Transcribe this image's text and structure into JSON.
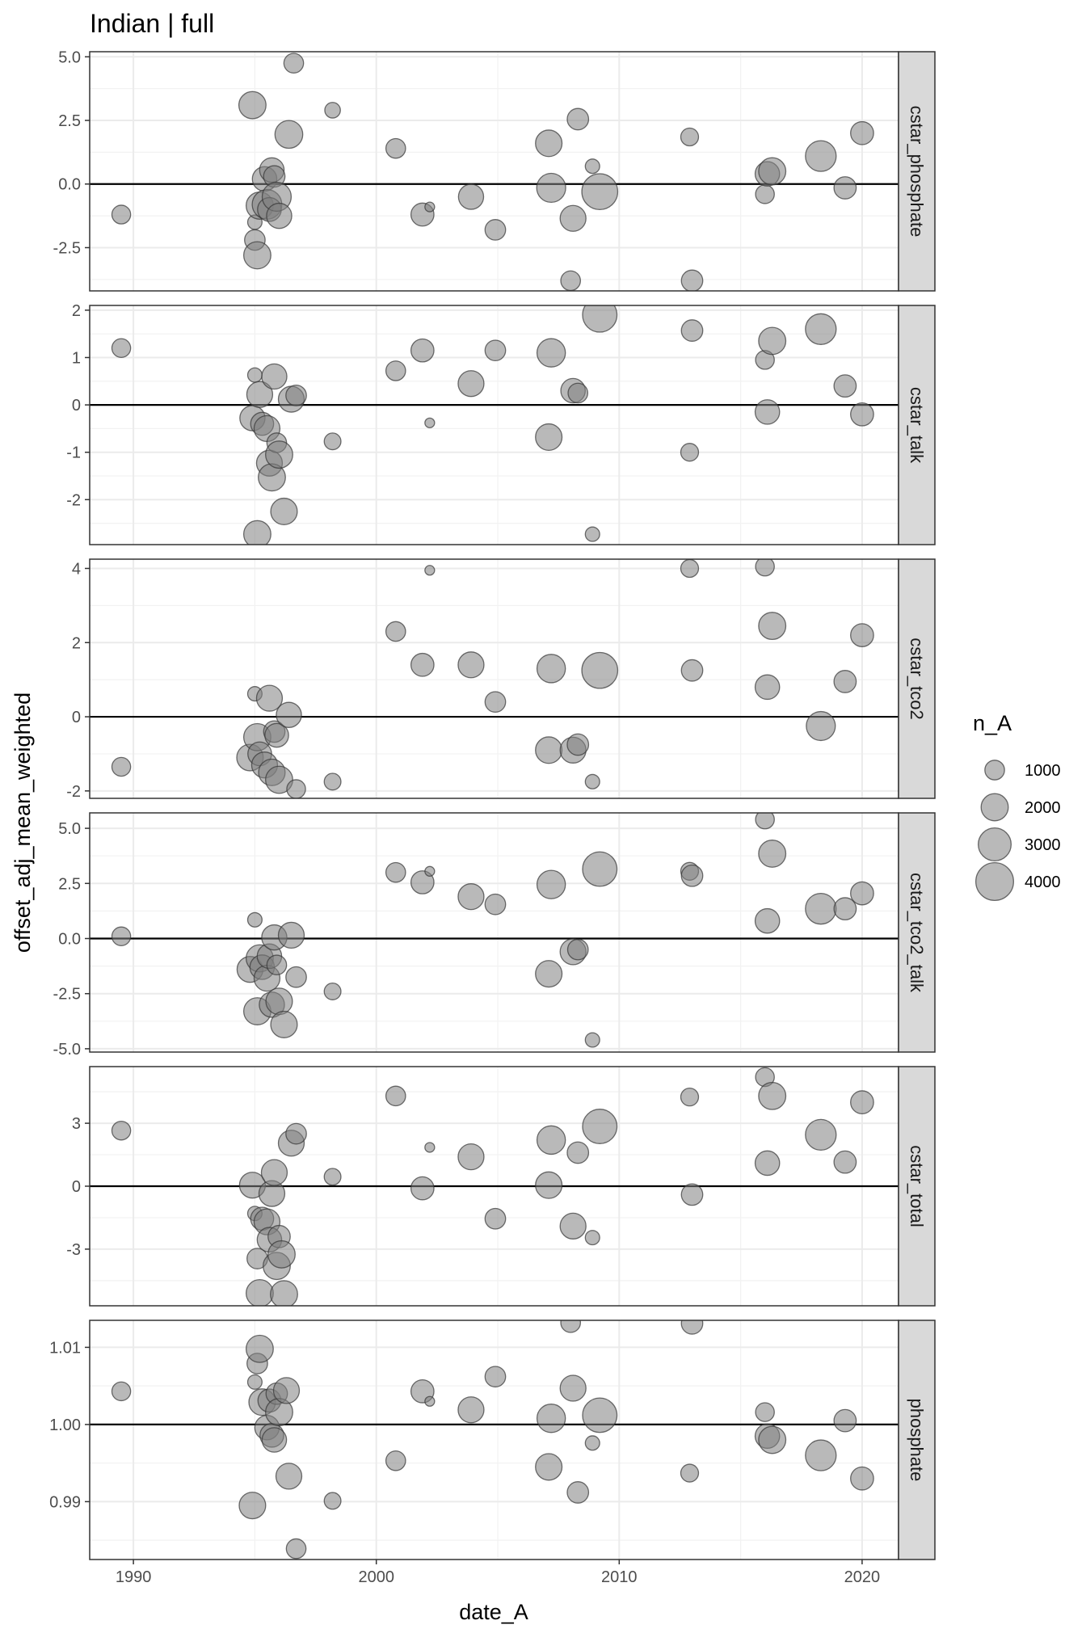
{
  "chart_data": {
    "type": "scatter",
    "title": "Indian | full",
    "xlabel": "date_A",
    "ylabel": "offset_adj_mean_weighted",
    "xlim": [
      1988.2,
      2021.5
    ],
    "x_ticks": [
      1990,
      2000,
      2010,
      2020
    ],
    "x_tick_labels": [
      "1990",
      "2000",
      "2010",
      "2020"
    ],
    "grid": true,
    "reference_line": 0,
    "point_color": "#808080",
    "point_outline": "#333333",
    "legend": {
      "title": "n_A",
      "position": "right",
      "entries": [
        {
          "label": "1000",
          "n": 1000
        },
        {
          "label": "2000",
          "n": 2000
        },
        {
          "label": "3000",
          "n": 3000
        },
        {
          "label": "4000",
          "n": 4000
        }
      ]
    },
    "facets": [
      {
        "name": "cstar_phosphate",
        "ylim": [
          -4.2,
          5.2
        ],
        "y_ticks": [
          -2.5,
          0,
          2.5,
          5
        ],
        "y_tick_labels": [
          "-2.5",
          "0.0",
          "2.5",
          "5.0"
        ],
        "ref": 0,
        "points": [
          [
            1989.5,
            -1.2,
            900
          ],
          [
            1994.9,
            3.1,
            2000
          ],
          [
            1995.0,
            -1.5,
            500
          ],
          [
            1995.0,
            -2.2,
            1100
          ],
          [
            1995.1,
            -2.8,
            2000
          ],
          [
            1995.2,
            -0.85,
            2000
          ],
          [
            1995.4,
            0.2,
            1600
          ],
          [
            1995.5,
            -0.8,
            2400
          ],
          [
            1995.6,
            -1.0,
            1500
          ],
          [
            1995.7,
            0.55,
            1600
          ],
          [
            1995.8,
            0.3,
            1200
          ],
          [
            1995.9,
            -0.5,
            2300
          ],
          [
            1996.0,
            -1.25,
            1700
          ],
          [
            1996.4,
            1.95,
            2100
          ],
          [
            1996.6,
            4.75,
            1000
          ],
          [
            1998.2,
            2.9,
            600
          ],
          [
            2000.8,
            1.4,
            1000
          ],
          [
            2001.9,
            -1.2,
            1400
          ],
          [
            2002.2,
            -0.9,
            200
          ],
          [
            2003.9,
            -0.5,
            1700
          ],
          [
            2004.9,
            -1.8,
            1100
          ],
          [
            2007.1,
            1.6,
            1900
          ],
          [
            2007.2,
            -0.15,
            2300
          ],
          [
            2008.0,
            -3.8,
            1000
          ],
          [
            2008.1,
            -1.35,
            1800
          ],
          [
            2008.3,
            2.55,
            1200
          ],
          [
            2008.9,
            0.7,
            500
          ],
          [
            2009.2,
            -0.3,
            3600
          ],
          [
            2012.9,
            1.85,
            800
          ],
          [
            2013.0,
            -3.8,
            1200
          ],
          [
            2016.0,
            -0.4,
            900
          ],
          [
            2016.1,
            0.4,
            1600
          ],
          [
            2016.3,
            0.5,
            2000
          ],
          [
            2018.3,
            1.1,
            2600
          ],
          [
            2019.3,
            -0.15,
            1300
          ],
          [
            2020.0,
            2.0,
            1400
          ]
        ]
      },
      {
        "name": "cstar_talk",
        "ylim": [
          -2.95,
          2.1
        ],
        "y_ticks": [
          -2,
          -1,
          0,
          1,
          2
        ],
        "y_tick_labels": [
          "-2",
          "-1",
          "0",
          "1",
          "2"
        ],
        "ref": 0,
        "points": [
          [
            1989.5,
            1.2,
            900
          ],
          [
            1994.9,
            -0.28,
            1700
          ],
          [
            1995.0,
            0.63,
            500
          ],
          [
            1995.1,
            -2.73,
            2000
          ],
          [
            1995.2,
            0.22,
            1800
          ],
          [
            1995.3,
            -0.4,
            1400
          ],
          [
            1995.5,
            -0.5,
            1800
          ],
          [
            1995.6,
            -1.23,
            1800
          ],
          [
            1995.7,
            -1.53,
            2000
          ],
          [
            1995.8,
            0.6,
            1700
          ],
          [
            1995.9,
            -0.8,
            1000
          ],
          [
            1996.0,
            -1.05,
            2000
          ],
          [
            1996.2,
            -2.25,
            1900
          ],
          [
            1996.5,
            0.12,
            1800
          ],
          [
            1996.7,
            0.2,
            1100
          ],
          [
            1998.2,
            -0.77,
            700
          ],
          [
            2000.8,
            0.72,
            1000
          ],
          [
            2001.9,
            1.15,
            1400
          ],
          [
            2002.2,
            -0.38,
            200
          ],
          [
            2003.9,
            0.45,
            1800
          ],
          [
            2004.9,
            1.15,
            1100
          ],
          [
            2007.1,
            -0.68,
            1900
          ],
          [
            2007.2,
            1.1,
            2200
          ],
          [
            2008.1,
            0.3,
            1600
          ],
          [
            2008.3,
            0.25,
            1000
          ],
          [
            2008.9,
            -2.73,
            500
          ],
          [
            2009.2,
            1.9,
            3300
          ],
          [
            2012.9,
            -1.0,
            800
          ],
          [
            2013.0,
            1.57,
            1200
          ],
          [
            2016.0,
            0.95,
            900
          ],
          [
            2016.1,
            -0.15,
            1600
          ],
          [
            2016.3,
            1.35,
            2000
          ],
          [
            2018.3,
            1.6,
            2600
          ],
          [
            2019.3,
            0.4,
            1300
          ],
          [
            2020.0,
            -0.2,
            1400
          ]
        ]
      },
      {
        "name": "cstar_tco2",
        "ylim": [
          -2.2,
          4.25
        ],
        "y_ticks": [
          -2,
          0,
          2,
          4
        ],
        "y_tick_labels": [
          "-2",
          "0",
          "2",
          "4"
        ],
        "ref": 0,
        "points": [
          [
            1989.5,
            -1.35,
            900
          ],
          [
            1994.8,
            -1.1,
            1900
          ],
          [
            1995.0,
            0.62,
            500
          ],
          [
            1995.1,
            -0.55,
            2000
          ],
          [
            1995.2,
            -1.0,
            1500
          ],
          [
            1995.4,
            -1.3,
            1800
          ],
          [
            1995.6,
            0.5,
            1800
          ],
          [
            1995.7,
            -1.5,
            1900
          ],
          [
            1995.8,
            -0.4,
            1200
          ],
          [
            1995.9,
            -0.5,
            1500
          ],
          [
            1996.0,
            -1.7,
            2000
          ],
          [
            1996.4,
            0.05,
            1700
          ],
          [
            1996.7,
            -1.95,
            900
          ],
          [
            1998.2,
            -1.75,
            700
          ],
          [
            2000.8,
            2.3,
            1000
          ],
          [
            2001.9,
            1.4,
            1400
          ],
          [
            2002.2,
            3.95,
            200
          ],
          [
            2003.9,
            1.4,
            1800
          ],
          [
            2004.9,
            0.4,
            1100
          ],
          [
            2007.1,
            -0.9,
            1900
          ],
          [
            2007.2,
            1.3,
            2200
          ],
          [
            2008.1,
            -0.9,
            1800
          ],
          [
            2008.3,
            -0.75,
            1200
          ],
          [
            2008.9,
            -1.75,
            500
          ],
          [
            2009.2,
            1.25,
            3600
          ],
          [
            2012.9,
            4.0,
            800
          ],
          [
            2013.0,
            1.25,
            1200
          ],
          [
            2016.0,
            4.05,
            900
          ],
          [
            2016.1,
            0.8,
            1600
          ],
          [
            2016.3,
            2.45,
            2000
          ],
          [
            2018.3,
            -0.25,
            2300
          ],
          [
            2019.3,
            0.95,
            1300
          ],
          [
            2020.0,
            2.2,
            1400
          ]
        ]
      },
      {
        "name": "cstar_tco2_talk",
        "ylim": [
          -5.15,
          5.7
        ],
        "y_ticks": [
          -5,
          -2.5,
          0,
          2.5,
          5
        ],
        "y_tick_labels": [
          "-5.0",
          "-2.5",
          "0.0",
          "2.5",
          "5.0"
        ],
        "ref": 0,
        "points": [
          [
            1989.5,
            0.1,
            900
          ],
          [
            1994.8,
            -1.4,
            1800
          ],
          [
            1995.0,
            0.85,
            500
          ],
          [
            1995.1,
            -3.3,
            2000
          ],
          [
            1995.2,
            -0.9,
            2000
          ],
          [
            1995.3,
            -1.3,
            1600
          ],
          [
            1995.5,
            -1.8,
            1800
          ],
          [
            1995.6,
            -0.8,
            1600
          ],
          [
            1995.7,
            -3.0,
            1700
          ],
          [
            1995.8,
            0.05,
            1700
          ],
          [
            1995.9,
            -1.2,
            1000
          ],
          [
            1996.0,
            -2.85,
            1900
          ],
          [
            1996.2,
            -3.9,
            1900
          ],
          [
            1996.5,
            0.15,
            1800
          ],
          [
            1996.7,
            -1.75,
            1100
          ],
          [
            1998.2,
            -2.4,
            700
          ],
          [
            2000.8,
            3.0,
            1000
          ],
          [
            2001.9,
            2.55,
            1400
          ],
          [
            2002.2,
            3.05,
            200
          ],
          [
            2003.9,
            1.9,
            1800
          ],
          [
            2004.9,
            1.55,
            1100
          ],
          [
            2007.1,
            -1.6,
            1900
          ],
          [
            2007.2,
            2.45,
            2200
          ],
          [
            2008.1,
            -0.6,
            1800
          ],
          [
            2008.3,
            -0.5,
            1100
          ],
          [
            2008.9,
            -4.6,
            500
          ],
          [
            2009.2,
            3.15,
            3300
          ],
          [
            2012.9,
            3.05,
            800
          ],
          [
            2013.0,
            2.85,
            1200
          ],
          [
            2016.0,
            5.4,
            900
          ],
          [
            2016.1,
            0.8,
            1600
          ],
          [
            2016.3,
            3.85,
            2000
          ],
          [
            2018.3,
            1.35,
            2600
          ],
          [
            2019.3,
            1.35,
            1300
          ],
          [
            2020.0,
            2.05,
            1400
          ]
        ]
      },
      {
        "name": "cstar_total",
        "ylim": [
          -5.7,
          5.7
        ],
        "y_ticks": [
          -3,
          0,
          3
        ],
        "y_tick_labels": [
          "-3",
          "0",
          "3"
        ],
        "ref": 0,
        "points": [
          [
            1989.5,
            2.65,
            900
          ],
          [
            1994.9,
            0.05,
            1800
          ],
          [
            1995.0,
            -1.3,
            500
          ],
          [
            1995.1,
            -3.45,
            1100
          ],
          [
            1995.2,
            -5.1,
            2000
          ],
          [
            1995.3,
            -1.55,
            1400
          ],
          [
            1995.5,
            -1.7,
            1800
          ],
          [
            1995.6,
            -2.55,
            1600
          ],
          [
            1995.7,
            -0.35,
            1800
          ],
          [
            1995.8,
            0.65,
            1800
          ],
          [
            1995.9,
            -3.8,
            2000
          ],
          [
            1996.0,
            -2.4,
            1300
          ],
          [
            1996.1,
            -3.25,
            2000
          ],
          [
            1996.2,
            -5.15,
            2000
          ],
          [
            1996.5,
            2.05,
            1800
          ],
          [
            1996.7,
            2.5,
            1100
          ],
          [
            1998.2,
            0.45,
            700
          ],
          [
            2000.8,
            4.3,
            1000
          ],
          [
            2001.9,
            -0.1,
            1400
          ],
          [
            2002.2,
            1.85,
            200
          ],
          [
            2003.9,
            1.4,
            1800
          ],
          [
            2004.9,
            -1.55,
            1100
          ],
          [
            2007.1,
            0.05,
            1900
          ],
          [
            2007.2,
            2.2,
            2200
          ],
          [
            2008.1,
            -1.9,
            1800
          ],
          [
            2008.3,
            1.6,
            1200
          ],
          [
            2008.9,
            -2.45,
            500
          ],
          [
            2009.2,
            2.85,
            3300
          ],
          [
            2012.9,
            4.25,
            800
          ],
          [
            2013.0,
            -0.4,
            1200
          ],
          [
            2016.0,
            5.2,
            900
          ],
          [
            2016.1,
            1.1,
            1600
          ],
          [
            2016.3,
            4.3,
            2000
          ],
          [
            2018.3,
            2.45,
            2600
          ],
          [
            2019.3,
            1.15,
            1300
          ],
          [
            2020.0,
            4.0,
            1400
          ]
        ]
      },
      {
        "name": "phosphate",
        "ylim": [
          0.9825,
          1.0135
        ],
        "y_ticks": [
          0.99,
          1.0,
          1.01
        ],
        "y_tick_labels": [
          "0.99",
          "1.00",
          "1.01"
        ],
        "ref": 1.0,
        "points": [
          [
            1989.5,
            1.0043,
            900
          ],
          [
            1994.9,
            0.9895,
            1900
          ],
          [
            1995.0,
            1.0055,
            500
          ],
          [
            1995.1,
            1.0079,
            1100
          ],
          [
            1995.2,
            1.0098,
            2000
          ],
          [
            1995.3,
            1.0029,
            1900
          ],
          [
            1995.5,
            0.9996,
            1600
          ],
          [
            1995.6,
            1.0031,
            1400
          ],
          [
            1995.7,
            0.9986,
            1500
          ],
          [
            1995.8,
            0.998,
            1600
          ],
          [
            1995.9,
            1.004,
            1200
          ],
          [
            1996.0,
            1.0016,
            2000
          ],
          [
            1996.3,
            1.0044,
            1800
          ],
          [
            1996.4,
            0.9933,
            1800
          ],
          [
            1996.7,
            0.9839,
            1000
          ],
          [
            1998.2,
            0.9901,
            700
          ],
          [
            2000.8,
            0.9953,
            1000
          ],
          [
            2001.9,
            1.0043,
            1400
          ],
          [
            2002.2,
            1.003,
            200
          ],
          [
            2003.9,
            1.0019,
            1800
          ],
          [
            2004.9,
            1.0062,
            1100
          ],
          [
            2007.1,
            0.9945,
            1900
          ],
          [
            2007.2,
            1.0008,
            2200
          ],
          [
            2008.0,
            1.0132,
            1000
          ],
          [
            2008.1,
            1.0047,
            1800
          ],
          [
            2008.3,
            0.9912,
            1200
          ],
          [
            2008.9,
            0.9976,
            500
          ],
          [
            2009.2,
            1.0012,
            3300
          ],
          [
            2012.9,
            0.9937,
            800
          ],
          [
            2013.0,
            1.0131,
            1200
          ],
          [
            2016.0,
            1.0016,
            900
          ],
          [
            2016.1,
            0.9985,
            1600
          ],
          [
            2016.3,
            0.998,
            2000
          ],
          [
            2018.3,
            0.996,
            2600
          ],
          [
            2019.3,
            1.0005,
            1300
          ],
          [
            2020.0,
            0.993,
            1400
          ]
        ]
      }
    ]
  }
}
